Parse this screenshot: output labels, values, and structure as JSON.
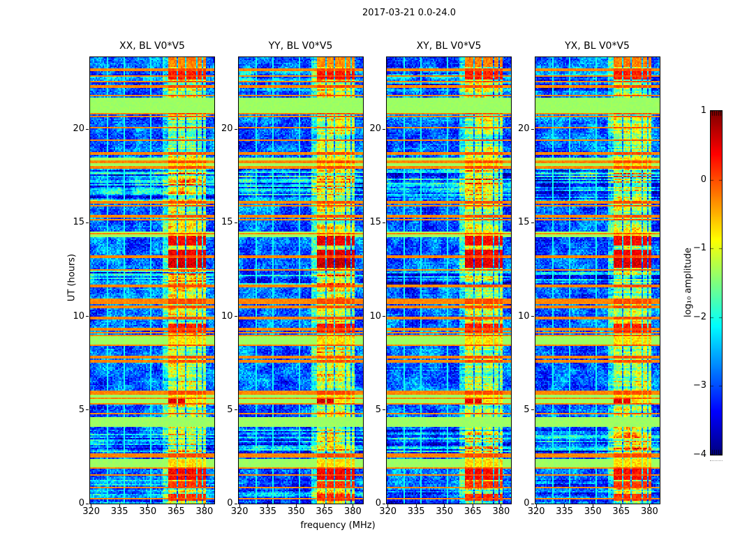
{
  "figure": {
    "background": "#ffffff",
    "spine_color": "#000000",
    "text_color": "#000000"
  },
  "chart_data": {
    "type": "heatmap",
    "title": "2017-03-21 0.0-24.0",
    "panels": [
      {
        "title": "XX, BL V0*V5",
        "seed": 11,
        "rfi_gain": 1.0,
        "hot_gain": 0.92
      },
      {
        "title": "YY, BL V0*V5",
        "seed": 22,
        "rfi_gain": 1.05,
        "hot_gain": 1.05
      },
      {
        "title": "XY, BL V0*V5",
        "seed": 33,
        "rfi_gain": 0.95,
        "hot_gain": 0.85
      },
      {
        "title": "YX, BL V0*V5",
        "seed": 44,
        "rfi_gain": 0.95,
        "hot_gain": 0.85
      }
    ],
    "x_axis": {
      "label": "frequency (MHz)",
      "range": [
        319.4,
        385.2
      ],
      "ticks": [
        320,
        335,
        350,
        365,
        380
      ]
    },
    "y_axis": {
      "label": "UT (hours)",
      "range": [
        0,
        23.85
      ],
      "ticks": [
        0,
        5,
        10,
        15,
        20
      ]
    },
    "colorbar": {
      "label": "log₁₀ amplitude",
      "range": [
        -4,
        1
      ],
      "ticks": [
        1,
        0,
        -1,
        -2,
        -3,
        -4
      ],
      "colormap": "jet"
    },
    "features": {
      "rfi_profile": [
        [
          358.0,
          360.8,
          0.9
        ],
        [
          360.8,
          365.5,
          1.75
        ],
        [
          365.5,
          366.2,
          0.35
        ],
        [
          366.2,
          370.0,
          1.8
        ],
        [
          370.0,
          370.7,
          0.35
        ],
        [
          370.7,
          375.4,
          1.65
        ],
        [
          375.4,
          376.1,
          0.35
        ],
        [
          376.1,
          378.6,
          1.6
        ],
        [
          378.6,
          379.3,
          0.3
        ],
        [
          379.3,
          381.0,
          1.55
        ]
      ],
      "green_bands": [
        {
          "ut": [
            20.85,
            21.72
          ],
          "hot": false
        },
        {
          "ut": [
            18.02,
            18.45
          ],
          "hot": true
        },
        {
          "ut": [
            14.2,
            14.5
          ],
          "hot": true
        },
        {
          "ut": [
            8.5,
            8.95
          ],
          "hot": true
        },
        {
          "ut": [
            5.3,
            5.9
          ],
          "hot": true
        },
        {
          "ut": [
            4.08,
            4.62
          ],
          "hot": false
        },
        {
          "ut": [
            1.95,
            2.42
          ],
          "hot": true
        }
      ],
      "orange_lines": [
        23.18,
        22.82,
        22.55,
        22.28,
        21.78,
        20.82,
        20.7,
        20.08,
        19.42,
        18.72,
        18.25,
        17.95,
        16.1,
        15.92,
        15.35,
        15.18,
        14.4,
        13.2,
        12.5,
        11.62,
        10.87,
        10.72,
        10.5,
        9.92,
        9.32,
        9.12,
        8.97,
        8.48,
        7.82,
        7.6,
        6.02,
        5.88,
        5.62,
        5.35,
        4.82,
        2.62,
        2.5,
        1.92,
        1.55,
        0.85,
        0.28
      ],
      "stripe_zones": [
        [
          22.05,
          23.1,
          0.8
        ],
        [
          16.05,
          17.92,
          1.0
        ],
        [
          11.55,
          12.45,
          1.0
        ],
        [
          2.55,
          3.95,
          1.0
        ],
        [
          0.0,
          1.25,
          0.6
        ]
      ],
      "hot_blocks": [
        {
          "ut": [
            23.35,
            23.85
          ],
          "s": -0.3
        },
        {
          "ut": [
            22.68,
            23.12
          ],
          "s": 0.3
        },
        {
          "ut": [
            13.76,
            14.28
          ],
          "s": 0.42
        },
        {
          "ut": [
            13.27,
            13.57
          ],
          "s": 0.5
        },
        {
          "ut": [
            12.56,
            13.1
          ],
          "s": 0.62
        },
        {
          "ut": [
            9.15,
            9.6
          ],
          "s": 0.28
        },
        {
          "ut": [
            5.32,
            5.68
          ],
          "s": 0.55,
          "f": [
            360.8,
            370.0
          ]
        },
        {
          "ut": [
            1.25,
            1.9
          ],
          "s": 0.4
        },
        {
          "ut": [
            0.85,
            1.2
          ],
          "s": 0.1
        },
        {
          "ut": [
            0.18,
            0.5
          ],
          "s": 0.15
        }
      ],
      "vlines": [
        328.6,
        337.3,
        351.9
      ]
    }
  }
}
